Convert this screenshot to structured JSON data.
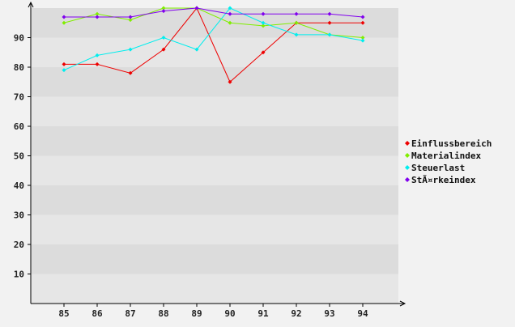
{
  "chart_data": {
    "type": "line",
    "x": [
      "85",
      "86",
      "87",
      "88",
      "89",
      "90",
      "91",
      "92",
      "93",
      "94"
    ],
    "ylim": [
      0,
      100
    ],
    "yticks": [
      "10",
      "20",
      "30",
      "40",
      "50",
      "60",
      "70",
      "80",
      "90"
    ],
    "grid": true,
    "legend_position": "right",
    "series": [
      {
        "name": "Einflussbereich",
        "color": "#ee0000",
        "values": [
          81,
          81,
          78,
          86,
          100,
          75,
          85,
          95,
          95,
          95
        ]
      },
      {
        "name": "Materialindex",
        "color": "#80ee00",
        "values": [
          95,
          98,
          96,
          100,
          100,
          95,
          94,
          95,
          91,
          90
        ]
      },
      {
        "name": "Steuerlast",
        "color": "#00eeee",
        "values": [
          79,
          84,
          86,
          90,
          86,
          100,
          95,
          91,
          91,
          89
        ]
      },
      {
        "name": "StÃ¤rkeindex",
        "color": "#8000ee",
        "values": [
          97,
          97,
          97,
          99,
          100,
          98,
          98,
          98,
          98,
          97
        ]
      }
    ]
  }
}
